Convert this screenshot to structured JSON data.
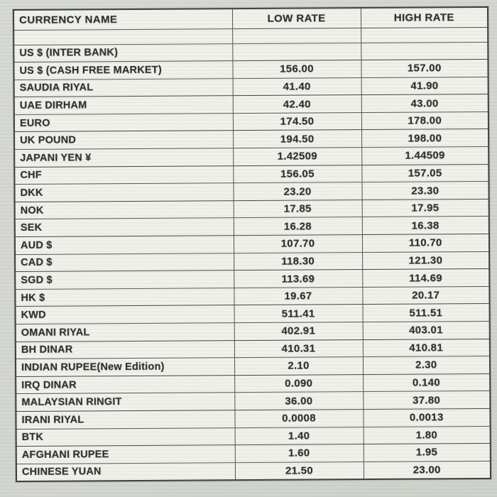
{
  "colors": {
    "page_background": "#d3d6d0",
    "paper": "#eff1ea",
    "ink": "#2b2b2b",
    "rule_line": "#4d4d4d"
  },
  "table": {
    "columns": [
      {
        "key": "name",
        "label": "CURRENCY NAME"
      },
      {
        "key": "low",
        "label": "LOW RATE"
      },
      {
        "key": "high",
        "label": "HIGH RATE"
      }
    ],
    "rows": [
      {
        "name": "",
        "low": "",
        "high": "",
        "spacer": true
      },
      {
        "name": "US $ (INTER BANK)",
        "low": "",
        "high": ""
      },
      {
        "name": "US $ (CASH FREE MARKET)",
        "low": "156.00",
        "high": "157.00"
      },
      {
        "name": "SAUDIA RIYAL",
        "low": "41.40",
        "high": "41.90"
      },
      {
        "name": "UAE DIRHAM",
        "low": "42.40",
        "high": "43.00"
      },
      {
        "name": "EURO",
        "low": "174.50",
        "high": "178.00"
      },
      {
        "name": "UK POUND",
        "low": "194.50",
        "high": "198.00"
      },
      {
        "name": "JAPANI YEN ¥",
        "low": "1.42509",
        "high": "1.44509"
      },
      {
        "name": "CHF",
        "low": "156.05",
        "high": "157.05"
      },
      {
        "name": "DKK",
        "low": "23.20",
        "high": "23.30"
      },
      {
        "name": "NOK",
        "low": "17.85",
        "high": "17.95"
      },
      {
        "name": "SEK",
        "low": "16.28",
        "high": "16.38"
      },
      {
        "name": "AUD $",
        "low": "107.70",
        "high": "110.70"
      },
      {
        "name": "CAD $",
        "low": "118.30",
        "high": "121.30"
      },
      {
        "name": "SGD $",
        "low": "113.69",
        "high": "114.69"
      },
      {
        "name": "HK $",
        "low": "19.67",
        "high": "20.17"
      },
      {
        "name": "KWD",
        "low": "511.41",
        "high": "511.51"
      },
      {
        "name": "OMANI RIYAL",
        "low": "402.91",
        "high": "403.01"
      },
      {
        "name": "BH DINAR",
        "low": "410.31",
        "high": "410.81"
      },
      {
        "name": "INDIAN RUPEE(New Edition)",
        "low": "2.10",
        "high": "2.30"
      },
      {
        "name": "IRQ DINAR",
        "low": "0.090",
        "high": "0.140"
      },
      {
        "name": "MALAYSIAN RINGIT",
        "low": "36.00",
        "high": "37.80"
      },
      {
        "name": "IRANI RIYAL",
        "low": "0.0008",
        "high": "0.0013"
      },
      {
        "name": "BTK",
        "low": "1.40",
        "high": "1.80"
      },
      {
        "name": "AFGHANI RUPEE",
        "low": "1.60",
        "high": "1.95"
      },
      {
        "name": "CHINESE YUAN",
        "low": "21.50",
        "high": "23.00"
      }
    ]
  }
}
